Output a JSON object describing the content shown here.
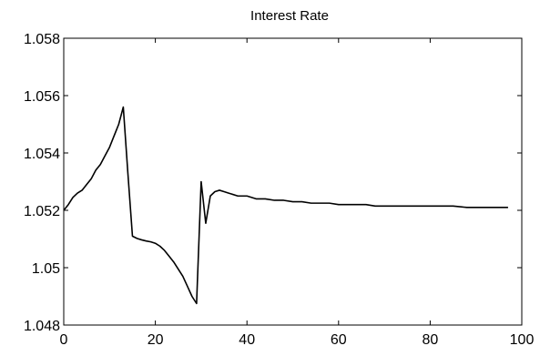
{
  "chart_data": {
    "type": "line",
    "title": "Interest Rate",
    "xlabel": "",
    "ylabel": "",
    "xlim": [
      0,
      100
    ],
    "ylim": [
      1.048,
      1.058
    ],
    "x_ticks": [
      0,
      20,
      40,
      60,
      80,
      100
    ],
    "x_tick_labels": [
      "0",
      "20",
      "40",
      "60",
      "80",
      "100"
    ],
    "y_ticks": [
      1.048,
      1.05,
      1.052,
      1.054,
      1.056,
      1.058
    ],
    "y_tick_labels": [
      "1.048",
      "1.05",
      "1.052",
      "1.054",
      "1.056",
      "1.058"
    ],
    "grid": false,
    "line_color": "#000000",
    "series": [
      {
        "x": [
          0,
          1,
          2,
          3,
          4,
          5,
          6,
          7,
          8,
          9,
          10,
          11,
          12,
          13,
          14,
          15,
          16,
          17,
          18,
          19,
          20,
          21,
          22,
          23,
          24,
          25,
          26,
          27,
          28,
          29,
          30,
          31,
          32,
          33,
          34,
          35,
          36,
          38,
          40,
          42,
          44,
          46,
          48,
          50,
          52,
          54,
          56,
          58,
          60,
          62,
          64,
          66,
          68,
          70,
          75,
          80,
          85,
          88,
          90,
          95,
          97
        ],
        "y": [
          1.052,
          1.0522,
          1.05245,
          1.0526,
          1.0527,
          1.0529,
          1.0531,
          1.0534,
          1.0536,
          1.0539,
          1.0542,
          1.0546,
          1.055,
          1.0556,
          1.0533,
          1.0511,
          1.05102,
          1.05097,
          1.05093,
          1.0509,
          1.05085,
          1.05075,
          1.0506,
          1.0504,
          1.0502,
          1.04995,
          1.0497,
          1.04935,
          1.049,
          1.04875,
          1.053,
          1.05155,
          1.0525,
          1.05265,
          1.0527,
          1.05265,
          1.0526,
          1.0525,
          1.0525,
          1.0524,
          1.0524,
          1.05235,
          1.05235,
          1.0523,
          1.0523,
          1.05225,
          1.05225,
          1.05225,
          1.0522,
          1.0522,
          1.0522,
          1.0522,
          1.05215,
          1.05215,
          1.05215,
          1.05215,
          1.05215,
          1.0521,
          1.0521,
          1.0521,
          1.0521
        ]
      }
    ]
  }
}
